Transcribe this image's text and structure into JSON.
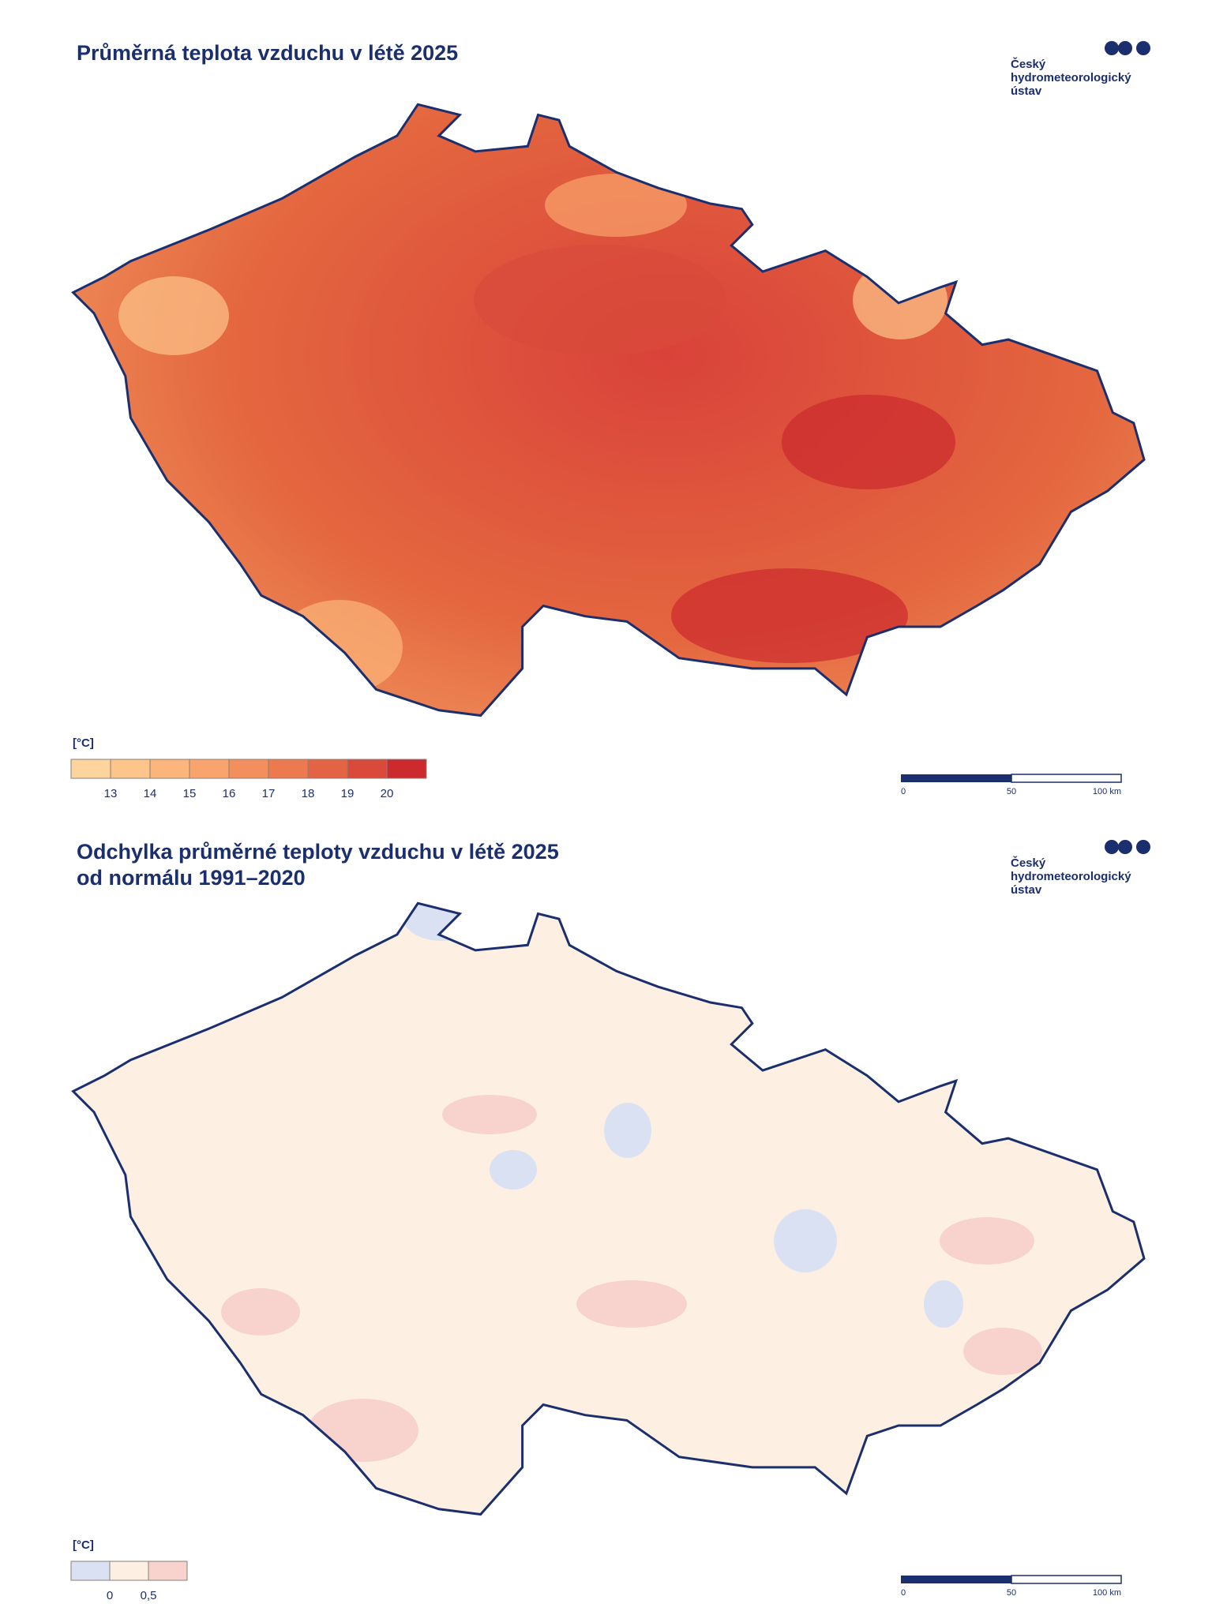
{
  "panels": [
    {
      "title": [
        "Průměrná teplota vzduchu v létě 2025"
      ],
      "logo": [
        "Český",
        "hydrometeorologický",
        "ústav"
      ],
      "legend": {
        "unit": "[°C]",
        "colors": [
          "#fdd49e",
          "#fdc58a",
          "#fcb57a",
          "#f9a46c",
          "#f38f5c",
          "#ec7a4e",
          "#e26444",
          "#d94a3a",
          "#cc2a2e"
        ],
        "labels": [
          "13",
          "14",
          "15",
          "16",
          "17",
          "18",
          "19",
          "20"
        ]
      },
      "scale_bar": [
        "0",
        "50",
        "100 km"
      ]
    },
    {
      "title": [
        "Odchylka průměrné teploty vzduchu v létě 2025",
        "od normálu 1991–2020"
      ],
      "logo": [
        "Český",
        "hydrometeorologický",
        "ústav"
      ],
      "legend": {
        "unit": "[°C]",
        "colors": [
          "#d9e1f3",
          "#fdf0e2",
          "#f8d3ce"
        ],
        "labels": [
          "0",
          "0,5"
        ]
      },
      "scale_bar": [
        "0",
        "50",
        "100 km"
      ]
    }
  ]
}
